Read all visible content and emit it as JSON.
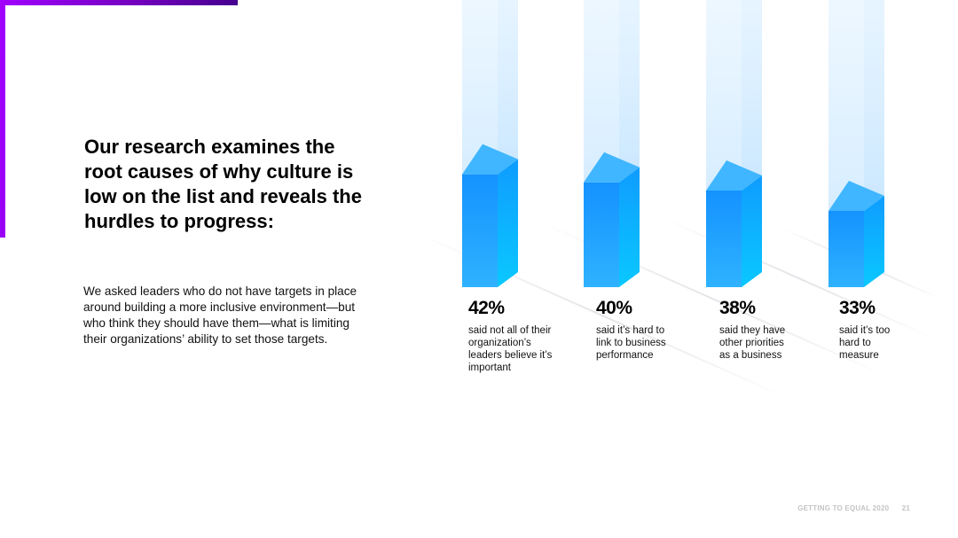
{
  "heading": "Our research examines the root causes of why culture is low on the list and reveals the hurdles to progress:",
  "body": "We asked leaders who do not have targets in place around building a more inclusive environment—but who think they should have them—what is limiting their organizations’ ability to set those targets.",
  "colors": {
    "accent": "#a100ff",
    "bar_front": "#1aa3ff",
    "bar_side": "#0a7ef5",
    "bar_top": "#3fb6ff"
  },
  "chart_data": {
    "type": "bar",
    "unit": "%",
    "categories": [
      "said not all of their organization’s leaders believe it’s important",
      "said it’s hard to link to business performance",
      "said they have other priorities as a business",
      "said it’s too hard to measure"
    ],
    "values": [
      42,
      40,
      38,
      33
    ],
    "labels": [
      "42%",
      "40%",
      "38%",
      "33%"
    ],
    "captions": [
      [
        "said not all of their",
        "organization’s",
        "leaders believe it’s",
        "important"
      ],
      [
        "said it’s hard to",
        "link to business",
        "performance"
      ],
      [
        "said they have",
        "other priorities",
        "as a business"
      ],
      [
        "said it’s too",
        "hard to",
        "measure"
      ]
    ],
    "ylim": [
      0,
      100
    ],
    "title": "",
    "xlabel": "",
    "ylabel": ""
  },
  "footer": {
    "report": "GETTING TO EQUAL 2020",
    "page": "21"
  }
}
